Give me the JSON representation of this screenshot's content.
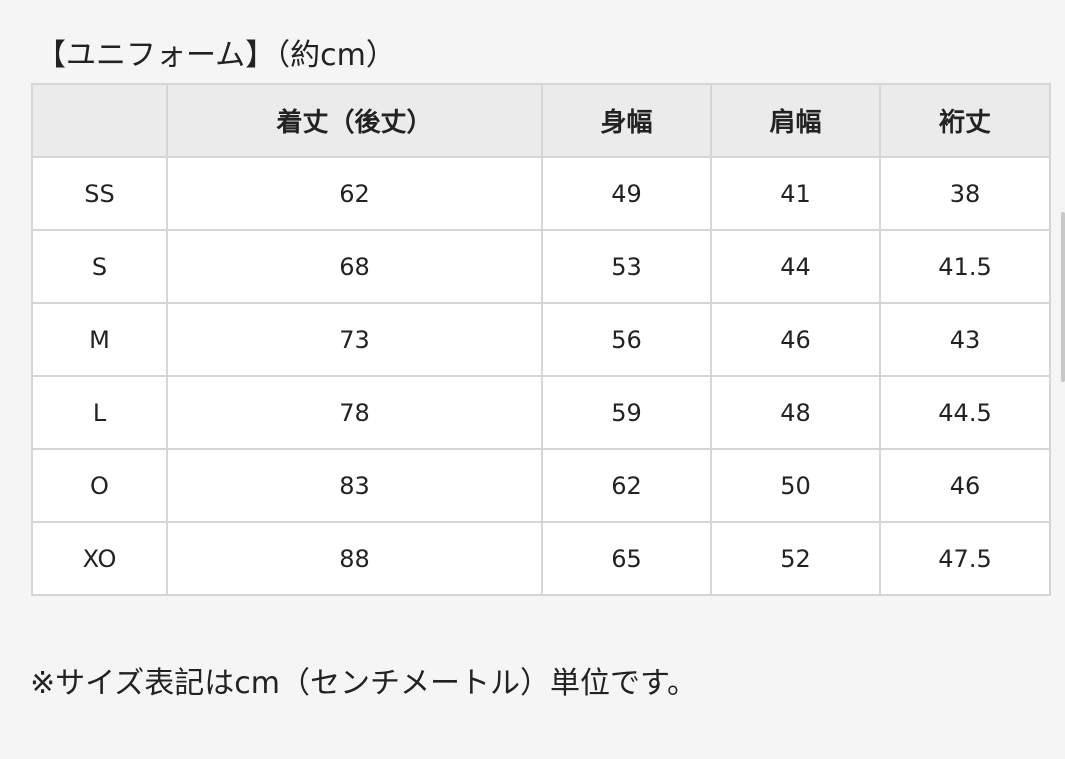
{
  "title": "【ユニフォーム】（約cm）",
  "table": {
    "headers": [
      "",
      "着丈（後丈）",
      "身幅",
      "肩幅",
      "裄丈"
    ],
    "rows": [
      [
        "SS",
        "62",
        "49",
        "41",
        "38"
      ],
      [
        "S",
        "68",
        "53",
        "44",
        "41.5"
      ],
      [
        "M",
        "73",
        "56",
        "46",
        "43"
      ],
      [
        "L",
        "78",
        "59",
        "48",
        "44.5"
      ],
      [
        "O",
        "83",
        "62",
        "50",
        "46"
      ],
      [
        "XO",
        "88",
        "65",
        "52",
        "47.5"
      ]
    ]
  },
  "note": "※サイズ表記はcm（センチメートル）単位です。"
}
